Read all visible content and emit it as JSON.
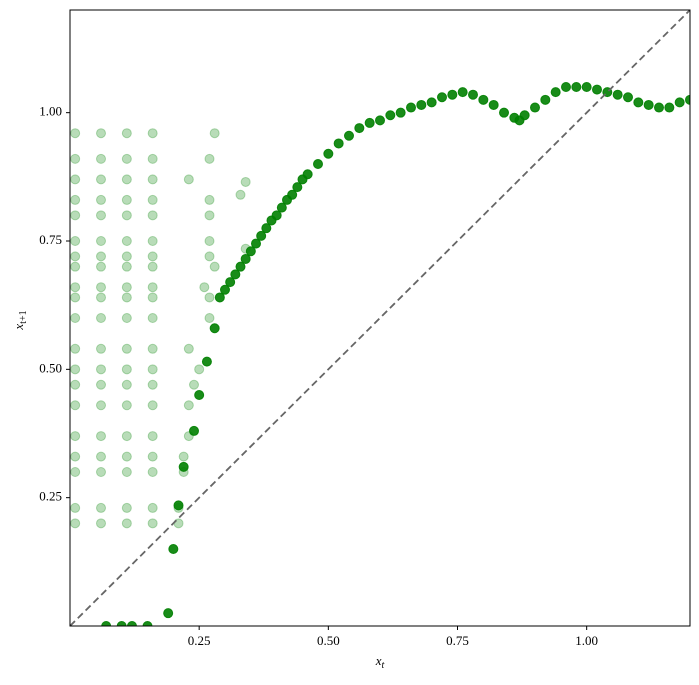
{
  "chart_data": {
    "type": "scatter",
    "xlabel": "x",
    "xlabel_sub": "t",
    "ylabel": "x",
    "ylabel_sub": "t+1",
    "xlim": [
      0,
      1.2
    ],
    "ylim": [
      0,
      1.2
    ],
    "xticks": [
      {
        "value": 0.25,
        "label": "0.25"
      },
      {
        "value": 0.5,
        "label": "0.50"
      },
      {
        "value": 0.75,
        "label": "0.75"
      },
      {
        "value": 1.0,
        "label": "1.00"
      }
    ],
    "yticks": [
      {
        "value": 0.25,
        "label": "0.25"
      },
      {
        "value": 0.5,
        "label": "0.50"
      },
      {
        "value": 0.75,
        "label": "0.75"
      },
      {
        "value": 1.0,
        "label": "1.00"
      }
    ],
    "diagonal": true,
    "diagonal_color": "#666666",
    "series": [
      {
        "color": "#008000",
        "alpha": 0.28,
        "x": [
          0.01,
          0.06,
          0.11,
          0.16,
          0.28,
          0.01,
          0.06,
          0.11,
          0.16,
          0.27,
          0.01,
          0.06,
          0.11,
          0.16,
          0.23,
          0.01,
          0.06,
          0.11,
          0.16,
          0.27,
          0.01,
          0.06,
          0.11,
          0.16,
          0.27,
          0.01,
          0.06,
          0.11,
          0.16,
          0.27,
          0.01,
          0.06,
          0.11,
          0.16,
          0.27,
          0.01,
          0.06,
          0.11,
          0.16,
          0.28,
          0.01,
          0.06,
          0.11,
          0.16,
          0.26,
          0.01,
          0.06,
          0.11,
          0.16,
          0.27,
          0.01,
          0.06,
          0.11,
          0.16,
          0.27,
          0.01,
          0.06,
          0.11,
          0.16,
          0.23,
          0.01,
          0.06,
          0.11,
          0.16,
          0.25,
          0.01,
          0.06,
          0.11,
          0.16,
          0.24,
          0.01,
          0.06,
          0.11,
          0.16,
          0.23,
          0.01,
          0.06,
          0.11,
          0.16,
          0.23,
          0.01,
          0.06,
          0.11,
          0.16,
          0.22,
          0.01,
          0.06,
          0.11,
          0.16,
          0.22,
          0.01,
          0.06,
          0.11,
          0.16,
          0.21,
          0.01,
          0.06,
          0.11,
          0.16,
          0.21,
          0.33,
          0.34,
          0.34
        ],
        "values": [
          0.96,
          0.96,
          0.96,
          0.96,
          0.96,
          0.91,
          0.91,
          0.91,
          0.91,
          0.91,
          0.87,
          0.87,
          0.87,
          0.87,
          0.87,
          0.83,
          0.83,
          0.83,
          0.83,
          0.83,
          0.8,
          0.8,
          0.8,
          0.8,
          0.8,
          0.75,
          0.75,
          0.75,
          0.75,
          0.75,
          0.72,
          0.72,
          0.72,
          0.72,
          0.72,
          0.7,
          0.7,
          0.7,
          0.7,
          0.7,
          0.66,
          0.66,
          0.66,
          0.66,
          0.66,
          0.64,
          0.64,
          0.64,
          0.64,
          0.64,
          0.6,
          0.6,
          0.6,
          0.6,
          0.6,
          0.54,
          0.54,
          0.54,
          0.54,
          0.54,
          0.5,
          0.5,
          0.5,
          0.5,
          0.5,
          0.47,
          0.47,
          0.47,
          0.47,
          0.47,
          0.43,
          0.43,
          0.43,
          0.43,
          0.43,
          0.37,
          0.37,
          0.37,
          0.37,
          0.37,
          0.33,
          0.33,
          0.33,
          0.33,
          0.33,
          0.3,
          0.3,
          0.3,
          0.3,
          0.3,
          0.23,
          0.23,
          0.23,
          0.23,
          0.23,
          0.2,
          0.2,
          0.2,
          0.2,
          0.2,
          0.84,
          0.865,
          0.735
        ]
      },
      {
        "color": "#008000",
        "alpha": 0.9,
        "x": [
          0.07,
          0.1,
          0.12,
          0.15,
          0.19,
          0.2,
          0.21,
          0.22,
          0.24,
          0.25,
          0.265,
          0.28,
          0.29,
          0.3,
          0.31,
          0.32,
          0.33,
          0.34,
          0.35,
          0.36,
          0.37,
          0.38,
          0.39,
          0.4,
          0.41,
          0.42,
          0.43,
          0.44,
          0.45,
          0.46,
          0.48,
          0.5,
          0.52,
          0.54,
          0.56,
          0.58,
          0.6,
          0.62,
          0.64,
          0.66,
          0.68,
          0.7,
          0.72,
          0.74,
          0.76,
          0.78,
          0.8,
          0.82,
          0.84,
          0.86,
          0.87,
          0.88,
          0.9,
          0.92,
          0.94,
          0.96,
          0.98,
          1.0,
          1.02,
          1.04,
          1.06,
          1.08,
          1.1,
          1.12,
          1.14,
          1.16,
          1.18,
          1.2
        ],
        "values": [
          0,
          0,
          0,
          0,
          0.025,
          0.15,
          0.235,
          0.31,
          0.38,
          0.45,
          0.515,
          0.58,
          0.64,
          0.655,
          0.67,
          0.685,
          0.7,
          0.715,
          0.73,
          0.745,
          0.76,
          0.775,
          0.79,
          0.8,
          0.815,
          0.83,
          0.84,
          0.855,
          0.87,
          0.88,
          0.9,
          0.92,
          0.94,
          0.955,
          0.97,
          0.98,
          0.985,
          0.995,
          1.0,
          1.01,
          1.015,
          1.02,
          1.03,
          1.035,
          1.04,
          1.035,
          1.025,
          1.015,
          1.0,
          0.99,
          0.985,
          0.995,
          1.01,
          1.025,
          1.04,
          1.05,
          1.05,
          1.05,
          1.045,
          1.04,
          1.035,
          1.03,
          1.02,
          1.015,
          1.01,
          1.01,
          1.02,
          1.025
        ]
      }
    ]
  }
}
